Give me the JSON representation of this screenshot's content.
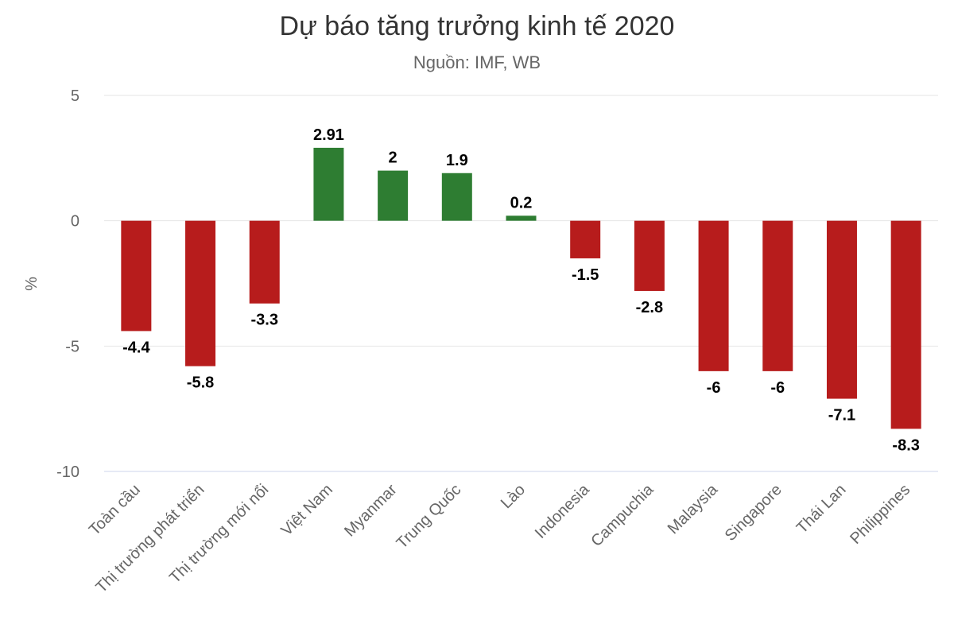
{
  "chart_data": {
    "type": "bar",
    "title": "Dự báo tăng trưởng kinh tế 2020",
    "subtitle": "Nguồn: IMF, WB",
    "ylabel": "%",
    "xlabel": "",
    "ylim": [
      -10,
      5
    ],
    "yticks": [
      5,
      0,
      -5,
      -10
    ],
    "grid": true,
    "legend": "none",
    "categories": [
      "Toàn cầu",
      "Thị trường phát triển",
      "Thị trường mới nổi",
      "Việt Nam",
      "Myanmar",
      "Trung Quốc",
      "Lào",
      "Indonesia",
      "Campuchia",
      "Malaysia",
      "Singapore",
      "Thái Lan",
      "Philippines"
    ],
    "values": [
      -4.4,
      -5.8,
      -3.3,
      2.91,
      2,
      1.9,
      0.2,
      -1.5,
      -2.8,
      -6,
      -6,
      -7.1,
      -8.3
    ],
    "colors": {
      "positive": "#2e7d32",
      "negative": "#b71c1c"
    }
  }
}
